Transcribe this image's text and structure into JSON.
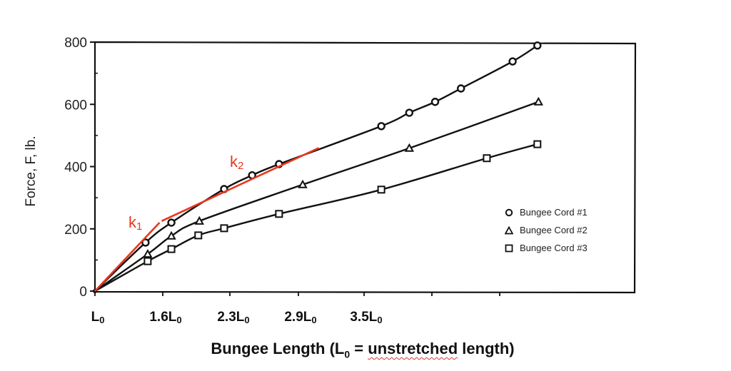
{
  "chart_data": {
    "type": "line",
    "title": "",
    "xlabel": "Bungee Length (L0 = unstretched length)",
    "xlabel_parts": {
      "prefix": "Bungee Length (L",
      "sub": "0",
      "mid": " = ",
      "underlined": "unstretched",
      "suffix": " length)"
    },
    "ylabel": "Force, F, lb.",
    "ylim": [
      0,
      800
    ],
    "yticks": [
      0,
      200,
      400,
      600,
      800
    ],
    "xtick_labels": [
      "L0",
      "1.6L0",
      "2.3L0",
      "2.9L0",
      "3.5L0"
    ],
    "xtick_positions_L0": [
      1.0,
      1.6,
      2.3,
      2.9,
      3.5
    ],
    "grid": false,
    "legend_position": "lower right (inside)",
    "series": [
      {
        "name": "Bungee Cord #1",
        "marker": "circle",
        "x": [
          1.0,
          1.47,
          1.71,
          2.2,
          2.46,
          2.71,
          3.66,
          3.92,
          4.16,
          4.4,
          4.88,
          5.11
        ],
        "y": [
          0,
          156,
          220,
          328,
          372,
          408,
          530,
          573,
          608,
          651,
          738,
          789
        ]
      },
      {
        "name": "Bungee Cord #2",
        "marker": "triangle",
        "x": [
          1.0,
          1.49,
          1.71,
          1.97,
          2.93,
          3.92,
          5.12
        ],
        "y": [
          0,
          119,
          177,
          225,
          342,
          459,
          608
        ]
      },
      {
        "name": "Bungee Cord #3",
        "marker": "square",
        "x": [
          1.0,
          1.49,
          1.71,
          1.96,
          2.2,
          2.71,
          3.66,
          4.64,
          5.11
        ],
        "y": [
          0,
          96,
          135,
          179,
          202,
          248,
          326,
          427,
          472
        ]
      }
    ],
    "annotations": [
      {
        "text": "k1",
        "color": "#e8371f",
        "note": "red tangent line for initial slope",
        "line": {
          "x": [
            1.0,
            1.6
          ],
          "y": [
            0,
            220
          ]
        }
      },
      {
        "text": "k2",
        "color": "#e8371f",
        "note": "red tangent line for second slope",
        "line": {
          "x": [
            1.62,
            3.08
          ],
          "y": [
            225,
            460
          ]
        }
      }
    ]
  },
  "labels": {
    "y_axis": "Force, F, lb.",
    "k1": "k",
    "k1_sub": "1",
    "k2": "k",
    "k2_sub": "2",
    "legend": [
      "Bungee Cord #1",
      "Bungee Cord #2",
      "Bungee Cord #3"
    ]
  },
  "colors": {
    "ink": "#111111",
    "annotation": "#e8371f"
  }
}
